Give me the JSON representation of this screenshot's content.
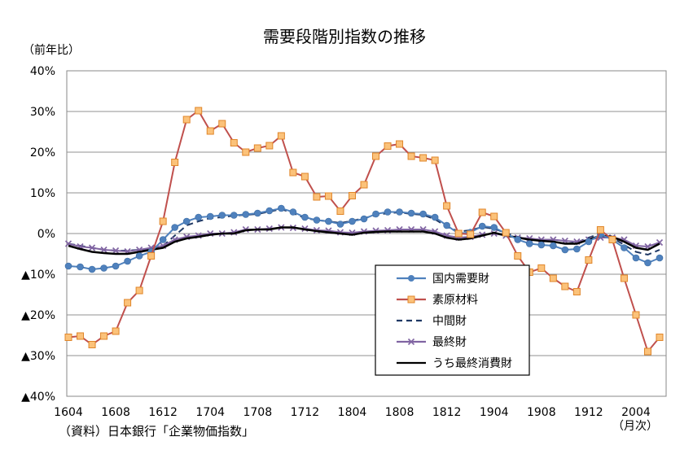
{
  "chart_data": {
    "type": "line",
    "title": "需要段階別指数の推移",
    "ylabel": "（前年比）",
    "xlabel": "（月次）",
    "source": "（資料）日本銀行「企業物価指数」",
    "ylim": [
      -40,
      40
    ],
    "yticks": [
      {
        "v": 40,
        "label": "40%",
        "neg": false
      },
      {
        "v": 30,
        "label": "30%",
        "neg": false
      },
      {
        "v": 20,
        "label": "20%",
        "neg": false
      },
      {
        "v": 10,
        "label": "10%",
        "neg": false
      },
      {
        "v": 0,
        "label": "0%",
        "neg": false
      },
      {
        "v": -10,
        "label": "▲10%",
        "neg": true
      },
      {
        "v": -20,
        "label": "▲20%",
        "neg": true
      },
      {
        "v": -30,
        "label": "▲30%",
        "neg": true
      },
      {
        "v": -40,
        "label": "▲40%",
        "neg": true
      }
    ],
    "negative_label_color": "#ff0000",
    "x": [
      "1604",
      "1605",
      "1606",
      "1607",
      "1608",
      "1609",
      "1610",
      "1611",
      "1612",
      "1701",
      "1702",
      "1703",
      "1704",
      "1705",
      "1706",
      "1707",
      "1708",
      "1709",
      "1710",
      "1711",
      "1712",
      "1801",
      "1802",
      "1803",
      "1804",
      "1805",
      "1806",
      "1807",
      "1808",
      "1809",
      "1810",
      "1811",
      "1812",
      "1901",
      "1902",
      "1903",
      "1904",
      "1905",
      "1906",
      "1907",
      "1908",
      "1909",
      "1910",
      "1911",
      "1912",
      "2001",
      "2002",
      "2003",
      "2004",
      "2005",
      "2006"
    ],
    "xtick_labels": [
      "1604",
      "1608",
      "1612",
      "1704",
      "1708",
      "1712",
      "1804",
      "1808",
      "1812",
      "1904",
      "1908",
      "1912",
      "2004"
    ],
    "grid": "horizontal",
    "legend_position": "bottom-right",
    "series": [
      {
        "name": "国内需要財",
        "color": "#4f81bd",
        "dash": "solid",
        "marker": "circle",
        "values": [
          -8,
          -8.2,
          -8.8,
          -8.5,
          -8,
          -6.8,
          -5.5,
          -4.5,
          -1.5,
          1.5,
          3,
          4,
          4.2,
          4.5,
          4.5,
          4.7,
          5,
          5.6,
          6.2,
          5.3,
          4,
          3.3,
          3,
          2.3,
          3,
          3.6,
          4.8,
          5.3,
          5.3,
          5,
          4.8,
          4,
          2,
          0,
          0.3,
          1.8,
          1.5,
          0,
          -1.5,
          -2.5,
          -2.8,
          -3,
          -4,
          -3.8,
          -2,
          -0.2,
          -1.5,
          -3.5,
          -6,
          -7.2,
          -6
        ]
      },
      {
        "name": "素原材料",
        "color": "#c0504d",
        "dash": "solid",
        "marker": "square",
        "values": [
          -25.5,
          -25.2,
          -27.3,
          -25.2,
          -24,
          -17,
          -14,
          -5.5,
          3,
          17.5,
          28,
          30.2,
          25.2,
          27,
          22.3,
          20,
          21,
          21.6,
          24,
          15,
          14,
          9,
          9.2,
          5.5,
          9.3,
          12,
          19,
          21.5,
          22,
          19,
          18.6,
          18,
          6.8,
          0,
          -0.2,
          5.2,
          4.2,
          0.2,
          -5.5,
          -9.5,
          -8.5,
          -11,
          -13,
          -14.3,
          -6.5,
          0.9,
          -1.5,
          -11,
          -20,
          -29,
          -25.5
        ]
      },
      {
        "name": "中間財",
        "color": "#1f3864",
        "dash": "dashed",
        "marker": "none",
        "values": [
          -2.5,
          -3,
          -3.5,
          -4,
          -4.2,
          -4.2,
          -4,
          -3.8,
          -3,
          -0.5,
          2,
          3,
          3.8,
          4,
          4.4,
          4.6,
          4.8,
          5.4,
          6,
          5,
          3.8,
          3.3,
          3,
          2.6,
          3.1,
          3.8,
          4.5,
          5,
          5.2,
          4.8,
          4.6,
          3.5,
          1.7,
          0.5,
          0.8,
          1.6,
          1.2,
          0.1,
          -0.8,
          -1.4,
          -1.6,
          -2,
          -2.5,
          -2.2,
          -1,
          0,
          -1,
          -2.8,
          -4.5,
          -5.2,
          -4
        ]
      },
      {
        "name": "最終財",
        "color": "#8064a2",
        "dash": "solid",
        "marker": "x",
        "values": [
          -2.5,
          -3.2,
          -3.5,
          -4,
          -4.2,
          -4.4,
          -4,
          -3.5,
          -3,
          -1.5,
          -0.8,
          -0.5,
          0,
          0,
          0.3,
          1,
          1,
          1.2,
          1.5,
          1.4,
          1.2,
          0.8,
          0.7,
          0.3,
          0.2,
          0.5,
          0.7,
          0.8,
          1,
          1,
          1,
          0.5,
          -0.5,
          -1,
          -0.8,
          -0.3,
          0,
          -0.5,
          -1,
          -1.2,
          -1.5,
          -1.5,
          -1.8,
          -2,
          -1.5,
          -1,
          -1,
          -1.5,
          -3,
          -3.2,
          -2.2
        ]
      },
      {
        "name": "うち最終消費財",
        "color": "#000000",
        "dash": "solid",
        "marker": "none",
        "values": [
          -3,
          -3.8,
          -4.5,
          -4.8,
          -5,
          -5,
          -4.5,
          -4,
          -3.5,
          -2,
          -1.2,
          -0.8,
          -0.3,
          0,
          0,
          0.8,
          1,
          1,
          1.5,
          1.5,
          1,
          0.6,
          0.3,
          0,
          -0.3,
          0.2,
          0.4,
          0.5,
          0.5,
          0.5,
          0.5,
          0,
          -1,
          -1.5,
          -1.2,
          -0.5,
          0.2,
          -0.5,
          -1,
          -1.5,
          -1.8,
          -2,
          -2.5,
          -2.5,
          -1.5,
          -0.5,
          -0.8,
          -2,
          -3.5,
          -4,
          -2.5
        ]
      }
    ]
  }
}
